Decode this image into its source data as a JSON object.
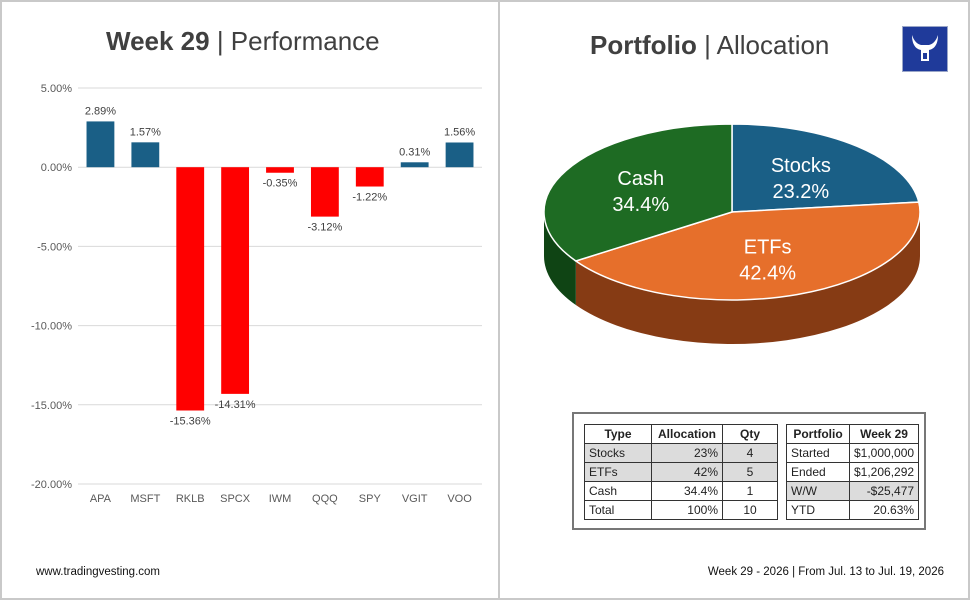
{
  "performance": {
    "title_bold": "Week 29",
    "title_rest": "| Performance"
  },
  "allocation": {
    "title_bold": "Portfolio",
    "title_rest": "| Allocation"
  },
  "chart_data": [
    {
      "type": "bar",
      "title": "Week 29 | Performance",
      "categories": [
        "APA",
        "MSFT",
        "RKLB",
        "SPCX",
        "IWM",
        "QQQ",
        "SPY",
        "VGIT",
        "VOO"
      ],
      "values": [
        2.89,
        1.57,
        -15.36,
        -14.31,
        -0.35,
        -3.12,
        -1.22,
        0.31,
        1.56
      ],
      "value_labels": [
        "2.89%",
        "1.57%",
        "-15.36%",
        "-14.31%",
        "-0.35%",
        "-3.12%",
        "-1.22%",
        "0.31%",
        "1.56%"
      ],
      "ylim": [
        -20,
        5
      ],
      "yticks": [
        5,
        0,
        -5,
        -10,
        -15,
        -20
      ],
      "ytick_labels": [
        "5.00%",
        "0.00%",
        "-5.00%",
        "-10.00%",
        "-15.00%",
        "-20.00%"
      ],
      "colors": {
        "positive": "#1a5f86",
        "negative": "#ff0000"
      },
      "grid": true
    },
    {
      "type": "pie",
      "title": "Portfolio | Allocation",
      "style": "3d",
      "labels": [
        "Stocks",
        "ETFs",
        "Cash"
      ],
      "values": [
        23.2,
        42.4,
        34.4
      ],
      "value_labels": [
        "23.2%",
        "42.4%",
        "34.4%"
      ],
      "colors": [
        "#1a5f86",
        "#e66f2b",
        "#1e6b23"
      ],
      "side_colors": [
        "#0e3c57",
        "#863b14",
        "#0f4414"
      ]
    }
  ],
  "alloc_table": {
    "headers": [
      "Type",
      "Allocation",
      "Qty"
    ],
    "rows": [
      [
        "Stocks",
        "23%",
        "4"
      ],
      [
        "ETFs",
        "42%",
        "5"
      ],
      [
        "Cash",
        "34.4%",
        "1"
      ],
      [
        "Total",
        "100%",
        "10"
      ]
    ]
  },
  "portfolio_table": {
    "headers": [
      "Portfolio",
      "Week 29"
    ],
    "rows": [
      [
        "Started",
        "$1,000,000"
      ],
      [
        "Ended",
        "$1,206,292"
      ],
      [
        "W/W",
        "-$25,477"
      ],
      [
        "YTD",
        "20.63%"
      ]
    ]
  },
  "footer": {
    "website": "www.tradingvesting.com",
    "period": "Week 29 - 2026 | From Jul. 13 to Jul. 19, 2026"
  }
}
